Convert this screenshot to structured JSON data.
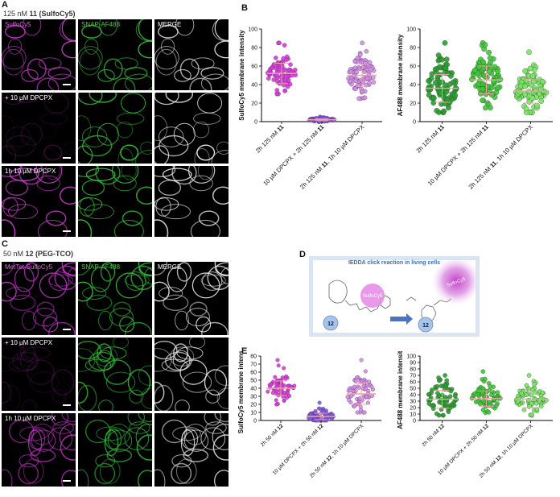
{
  "panel_letters": {
    "A": "A",
    "B": "B",
    "C": "C",
    "D": "D",
    "E": "E"
  },
  "captions": {
    "A": {
      "pre": "125 nM ",
      "num": "11",
      "post": " (SulfoCy5)"
    },
    "C": {
      "pre": "50 nM ",
      "num": "12",
      "post": " (PEG-TCO)"
    }
  },
  "micrographs": {
    "A": {
      "headers": [
        "SulfoCy5",
        "SNAP-AF488",
        "MERGE"
      ],
      "row_labels": [
        "",
        "+ 10 µM DPCPX",
        "1h 10 µM DPCPX"
      ]
    },
    "C": {
      "headers": [
        "MetTet-SulfoCy5",
        "SNAP-AF488",
        "MERGE"
      ],
      "row_labels": [
        "",
        "+ 10 µM DPCPX",
        "1h 10 µM DPCPX"
      ]
    }
  },
  "scheme": {
    "title": "IEDDA click reaction in living cells",
    "dye_label": "SulfoCy5",
    "compound": "12"
  },
  "colors": {
    "magenta": "#d23fd6",
    "light_magenta": "#c996e0",
    "blue_dot": "#6f5fe0",
    "green": "#44c43c",
    "light_green": "#7fe26a",
    "mean_bar": "#f0a0a0",
    "scheme_border": "#d9e5f3",
    "scheme_title": "#3a6fb0",
    "circle_fill": "#a8c4ea",
    "arrow": "#4a74c0"
  },
  "chart_data": [
    {
      "id": "B-left",
      "type": "scatter",
      "ylabel": "SulfoCy5 membrane intensity",
      "ylim": [
        0,
        100
      ],
      "yticks": [
        0,
        20,
        40,
        60,
        80,
        100
      ],
      "categories": [
        {
          "parts": [
            "2h 125 nM ",
            "11"
          ]
        },
        {
          "parts": [
            "10 µM DPCPX + 2h 125 nM ",
            "11"
          ]
        },
        {
          "parts": [
            "2h 125 nM ",
            "11",
            ", 1h 10 µM DPCPX"
          ]
        }
      ],
      "series": [
        {
          "mean": 52,
          "sd": 11,
          "min": 30,
          "max": 85,
          "n": 90,
          "color": "#d23fd6"
        },
        {
          "mean": 2,
          "sd": 1,
          "min": 0,
          "max": 5,
          "n": 70,
          "color": "#6f5fe0"
        },
        {
          "mean": 50,
          "sd": 12,
          "min": 25,
          "max": 85,
          "n": 90,
          "color": "#c996e0"
        }
      ]
    },
    {
      "id": "B-right",
      "type": "scatter",
      "ylabel": "AF488 membrane intensity",
      "ylim": [
        0,
        100
      ],
      "yticks": [
        0,
        20,
        40,
        60,
        80,
        100
      ],
      "categories": [
        {
          "parts": [
            "2h 125 nM ",
            "11"
          ]
        },
        {
          "parts": [
            "10 µM DPCPX + 2h 125 nM ",
            "11"
          ]
        },
        {
          "parts": [
            "2h 125 nM ",
            "11",
            ", 1h 10 µM DPCPX"
          ]
        }
      ],
      "series": [
        {
          "mean": 36,
          "sd": 15,
          "min": 10,
          "max": 85,
          "n": 90,
          "color": "#2f9a35"
        },
        {
          "mean": 45,
          "sd": 15,
          "min": 15,
          "max": 85,
          "n": 90,
          "color": "#44c43c"
        },
        {
          "mean": 33,
          "sd": 13,
          "min": 10,
          "max": 75,
          "n": 90,
          "color": "#7fe26a"
        }
      ]
    },
    {
      "id": "E-left",
      "type": "scatter",
      "ylabel": "SulfoCy5 membrane intensity",
      "ylim": [
        0,
        80
      ],
      "yticks": [
        0,
        10,
        20,
        30,
        40,
        50,
        60,
        70,
        80
      ],
      "categories": [
        {
          "parts": [
            "2h 50 nM ",
            "12"
          ]
        },
        {
          "parts": [
            "10 µM DPCPX + 2h 50 nM ",
            "12"
          ]
        },
        {
          "parts": [
            "2h 50 nM ",
            "12",
            ", 1h 10 µM DPCPX"
          ]
        }
      ],
      "series": [
        {
          "mean": 40,
          "sd": 9,
          "min": 20,
          "max": 75,
          "n": 70,
          "color": "#d23fd6"
        },
        {
          "mean": 5,
          "sd": 4,
          "min": 0,
          "max": 22,
          "n": 70,
          "color": "#6f5fe0"
        },
        {
          "mean": 33,
          "sd": 13,
          "min": 10,
          "max": 75,
          "n": 70,
          "color": "#c996e0"
        }
      ]
    },
    {
      "id": "E-right",
      "type": "scatter",
      "ylabel": "AF488 membrane intensity",
      "ylim": [
        0,
        100
      ],
      "yticks": [
        0,
        10,
        20,
        30,
        40,
        50,
        60,
        70,
        80,
        90,
        100
      ],
      "categories": [
        {
          "parts": [
            "2h 50 nM ",
            "12"
          ]
        },
        {
          "parts": [
            "10 µM DPCPX + 2h 50 nM ",
            "12"
          ]
        },
        {
          "parts": [
            "2h 50 nM ",
            "12",
            ", 1h 10 µM DPCPX"
          ]
        }
      ],
      "series": [
        {
          "mean": 33,
          "sd": 14,
          "min": 8,
          "max": 70,
          "n": 70,
          "color": "#2f9a35"
        },
        {
          "mean": 34,
          "sd": 12,
          "min": 12,
          "max": 76,
          "n": 70,
          "color": "#44c43c"
        },
        {
          "mean": 33,
          "sd": 13,
          "min": 8,
          "max": 70,
          "n": 70,
          "color": "#7fe26a"
        }
      ]
    }
  ]
}
